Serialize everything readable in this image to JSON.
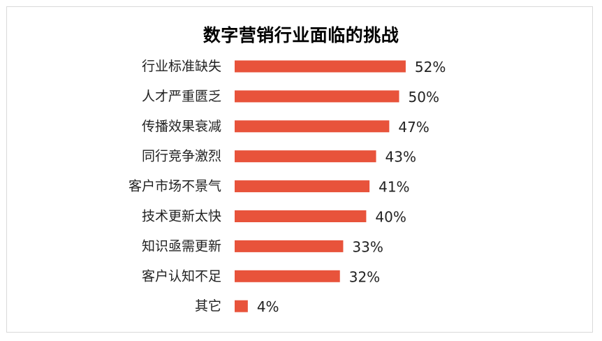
{
  "chart_data": {
    "type": "bar",
    "orientation": "horizontal",
    "title": "数字营销行业面临的挑战",
    "categories": [
      "行业标准缺失",
      "人才严重匮乏",
      "传播效果衰减",
      "同行竞争激烈",
      "客户市场不景气",
      "技术更新太快",
      "知识亟需更新",
      "客户认知不足",
      "其它"
    ],
    "values": [
      52,
      50,
      47,
      43,
      41,
      40,
      33,
      32,
      4
    ],
    "value_labels": [
      "52%",
      "50%",
      "47%",
      "43%",
      "41%",
      "40%",
      "33%",
      "32%",
      "4%"
    ],
    "unit": "%",
    "bar_color": "#e8533b",
    "grid": false,
    "legend": "none"
  }
}
